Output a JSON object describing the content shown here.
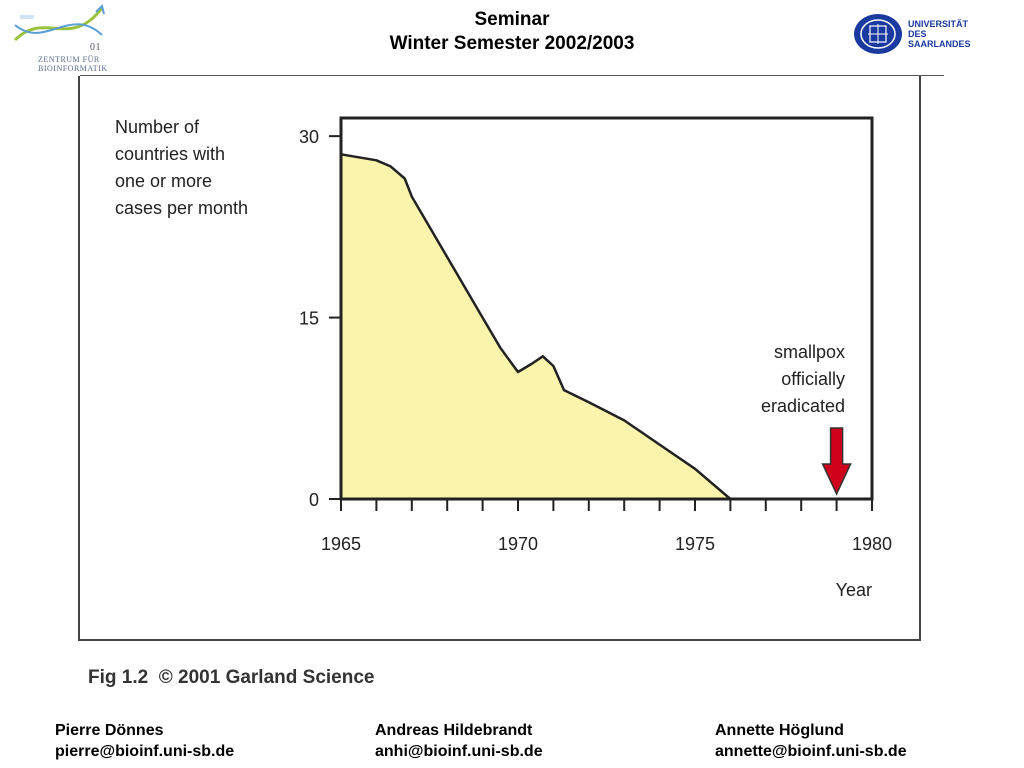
{
  "header": {
    "title_line1": "Seminar",
    "title_line2": "Winter Semester 2002/2003"
  },
  "logo_left": {
    "line1": "ZENTRUM FÜR",
    "line2": "BIOINFORMATIK",
    "digits": "01",
    "colors": {
      "green": "#9bc23c",
      "blue": "#5aa0d8",
      "text": "#5a6a8a"
    }
  },
  "logo_right": {
    "line1": "UNIVERSITÄT",
    "line2": "DES",
    "line3": "SAARLANDES",
    "color": "#1a3aa0"
  },
  "chart_data": {
    "type": "area",
    "ylabel": [
      "Number of",
      "countries with",
      "one or more",
      "cases per month"
    ],
    "xlabel": "Year",
    "xlim": [
      1965,
      1980
    ],
    "ylim": [
      0,
      31.5
    ],
    "x_ticks": [
      1965,
      1970,
      1975,
      1980
    ],
    "y_ticks": [
      0,
      15,
      30
    ],
    "x": [
      1965,
      1966,
      1966.4,
      1966.8,
      1967,
      1968,
      1969,
      1969.5,
      1970,
      1970.4,
      1970.7,
      1971,
      1971.3,
      1972,
      1973,
      1974,
      1975,
      1976
    ],
    "y": [
      28.5,
      28,
      27.5,
      26.5,
      25,
      20,
      15,
      12.5,
      10.5,
      11.2,
      11.8,
      11.0,
      9.0,
      8.0,
      6.5,
      4.5,
      2.5,
      0
    ],
    "fill_color": "#fbf4ad",
    "grid": false,
    "annotation": {
      "text": [
        "smallpox",
        "officially",
        "eradicated"
      ],
      "x": 1979,
      "arrow_color": "#d0021b"
    }
  },
  "caption": "Fig 1.2  © 2001 Garland Science",
  "authors": [
    {
      "name": "Pierre Dönnes",
      "email": "pierre@bioinf.uni-sb.de"
    },
    {
      "name": "Andreas Hildebrandt",
      "email": "anhi@bioinf.uni-sb.de"
    },
    {
      "name": "Annette Höglund",
      "email": "annette@bioinf.uni-sb.de"
    }
  ]
}
